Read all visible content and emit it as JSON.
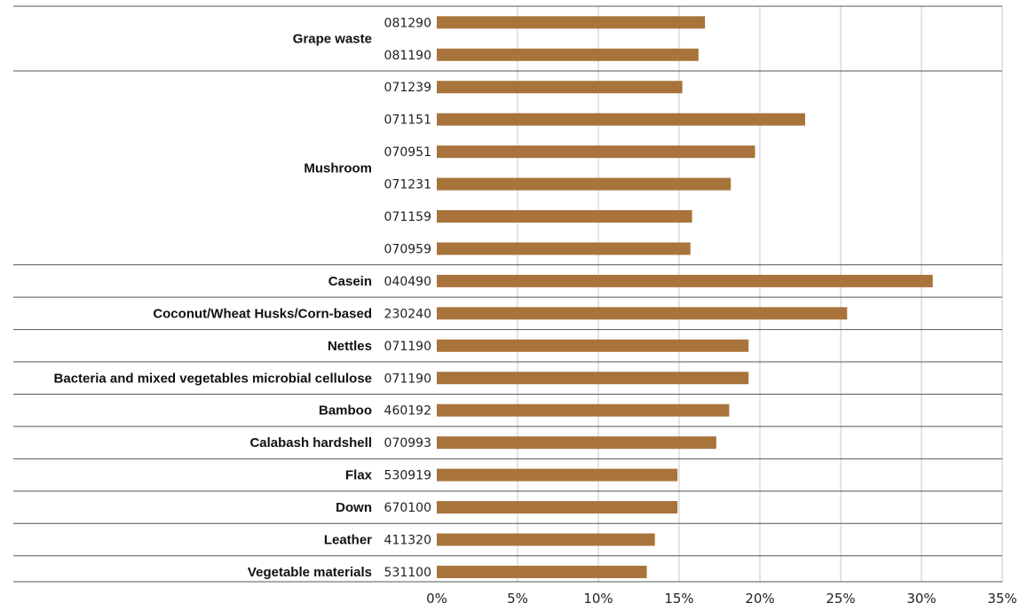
{
  "colors": {
    "bar": "#a8743c",
    "grid": "#c8c8c8",
    "separator": "#555555",
    "text": "#111111"
  },
  "chart_data": {
    "type": "bar",
    "orientation": "horizontal",
    "title": "",
    "xlabel": "",
    "ylabel": "",
    "xlim": [
      0,
      35
    ],
    "x_unit": "%",
    "x_ticks": [
      "0%",
      "5%",
      "10%",
      "15%",
      "20%",
      "25%",
      "30%",
      "35%"
    ],
    "grid": "vertical",
    "legend": "none",
    "groups": [
      {
        "name": "Grape waste",
        "bars": [
          {
            "code": "081290",
            "value": 16.6
          },
          {
            "code": "081190",
            "value": 16.2
          }
        ]
      },
      {
        "name": "Mushroom",
        "bars": [
          {
            "code": "071239",
            "value": 15.2
          },
          {
            "code": "071151",
            "value": 22.8
          },
          {
            "code": "070951",
            "value": 19.7
          },
          {
            "code": "071231",
            "value": 18.2
          },
          {
            "code": "071159",
            "value": 15.8
          },
          {
            "code": "070959",
            "value": 15.7
          }
        ]
      },
      {
        "name": "Casein",
        "bars": [
          {
            "code": "040490",
            "value": 30.7
          }
        ]
      },
      {
        "name": "Coconut/Wheat Husks/Corn-based",
        "bars": [
          {
            "code": "230240",
            "value": 25.4
          }
        ]
      },
      {
        "name": "Nettles",
        "bars": [
          {
            "code": "071190",
            "value": 19.3
          }
        ]
      },
      {
        "name": "Bacteria and mixed vegetables microbial cellulose",
        "bars": [
          {
            "code": "071190",
            "value": 19.3
          }
        ]
      },
      {
        "name": "Bamboo",
        "bars": [
          {
            "code": "460192",
            "value": 18.1
          }
        ]
      },
      {
        "name": "Calabash hardshell",
        "bars": [
          {
            "code": "070993",
            "value": 17.3
          }
        ]
      },
      {
        "name": "Flax",
        "bars": [
          {
            "code": "530919",
            "value": 14.9
          }
        ]
      },
      {
        "name": "Down",
        "bars": [
          {
            "code": "670100",
            "value": 14.9
          }
        ]
      },
      {
        "name": "Leather",
        "bars": [
          {
            "code": "411320",
            "value": 13.5
          }
        ]
      },
      {
        "name": "Vegetable materials",
        "bars": [
          {
            "code": "531100",
            "value": 13.0
          }
        ]
      }
    ]
  }
}
